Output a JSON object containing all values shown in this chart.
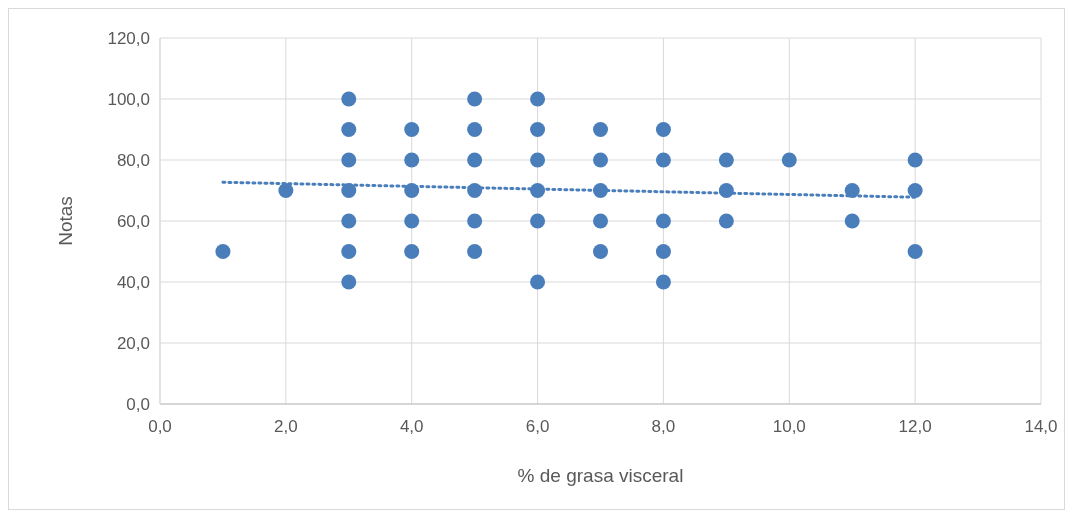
{
  "chart_data": {
    "type": "scatter",
    "xlabel": "% de grasa visceral",
    "ylabel": "Notas",
    "grid": true,
    "xlim": [
      0,
      14
    ],
    "ylim": [
      0,
      120
    ],
    "xticks": [
      {
        "value": 0,
        "label": "0,0"
      },
      {
        "value": 2,
        "label": "2,0"
      },
      {
        "value": 4,
        "label": "4,0"
      },
      {
        "value": 6,
        "label": "6,0"
      },
      {
        "value": 8,
        "label": "8,0"
      },
      {
        "value": 10,
        "label": "10,0"
      },
      {
        "value": 12,
        "label": "12,0"
      },
      {
        "value": 14,
        "label": "14,0"
      }
    ],
    "yticks": [
      {
        "value": 0,
        "label": "0,0"
      },
      {
        "value": 20,
        "label": "20,0"
      },
      {
        "value": 40,
        "label": "40,0"
      },
      {
        "value": 60,
        "label": "60,0"
      },
      {
        "value": 80,
        "label": "80,0"
      },
      {
        "value": 100,
        "label": "100,0"
      },
      {
        "value": 120,
        "label": "120,0"
      }
    ],
    "series": [
      {
        "type": "scatter",
        "marker": "circle",
        "color": "#4a7ebb",
        "x": [
          1,
          2,
          3,
          3,
          3,
          3,
          3,
          3,
          3,
          4,
          4,
          4,
          4,
          4,
          5,
          5,
          5,
          5,
          5,
          5,
          6,
          6,
          6,
          6,
          6,
          6,
          7,
          7,
          7,
          7,
          7,
          8,
          8,
          8,
          8,
          8,
          9,
          9,
          9,
          10,
          11,
          11,
          12,
          12,
          12
        ],
        "values": [
          50,
          70,
          100,
          90,
          80,
          70,
          60,
          50,
          40,
          90,
          80,
          70,
          60,
          50,
          100,
          90,
          80,
          70,
          60,
          50,
          100,
          90,
          80,
          70,
          60,
          40,
          90,
          80,
          70,
          60,
          50,
          90,
          80,
          60,
          50,
          40,
          80,
          70,
          60,
          80,
          70,
          60,
          80,
          70,
          50
        ]
      },
      {
        "type": "line",
        "marker": "none",
        "line_style": "dotted",
        "color": "#4a7ebb",
        "x": [
          1,
          12
        ],
        "values": [
          72.7,
          67.8
        ]
      }
    ]
  }
}
